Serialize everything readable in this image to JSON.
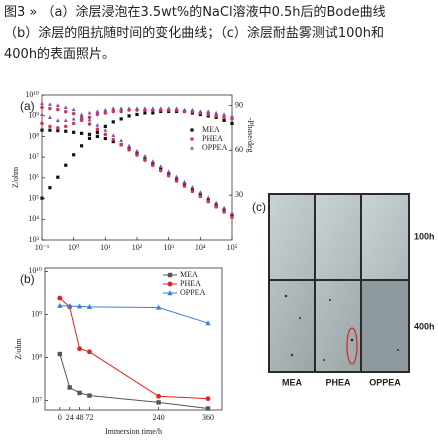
{
  "caption": [
    "图3 » （a）涂层浸泡在3.5wt%的NaCl溶液中0.5h后的Bode曲线",
    "（b）涂层的阻抗随时间的变化曲线；（c）涂层耐盐雾测试100h和",
    "400h的表面照片。"
  ],
  "chart_data": [
    {
      "type": "scatter",
      "panel_label": "(a)",
      "ylabel": "Z/ohm",
      "y2label": "-Phase/deg",
      "xscale": "log",
      "yscale": "log",
      "legend": "upper right",
      "x": [
        0.1,
        0.178,
        0.316,
        0.562,
        1,
        1.78,
        3.16,
        5.62,
        10,
        17.8,
        31.6,
        56.2,
        100,
        178,
        316,
        562,
        1000,
        1780,
        3160,
        5620,
        10000,
        17800,
        31600,
        56200,
        100000
      ],
      "xlim": [
        0.1,
        100000
      ],
      "xticks": [
        {
          "value": 0.1,
          "label": "10⁻¹"
        },
        {
          "value": 1,
          "label": "10⁰"
        },
        {
          "value": 10,
          "label": "10¹"
        },
        {
          "value": 100,
          "label": "10²"
        },
        {
          "value": 1000,
          "label": "10³"
        },
        {
          "value": 10000,
          "label": "10⁴"
        },
        {
          "value": 100000,
          "label": "10⁵"
        }
      ],
      "ylim": [
        1000,
        10000000000
      ],
      "yticks": [
        {
          "value": 1000,
          "label": "10³"
        },
        {
          "value": 10000,
          "label": "10⁴"
        },
        {
          "value": 100000,
          "label": "10⁵"
        },
        {
          "value": 1000000,
          "label": "10⁶"
        },
        {
          "value": 10000000,
          "label": "10⁷"
        },
        {
          "value": 100000000,
          "label": "10⁸"
        },
        {
          "value": 1000000000,
          "label": "10⁹"
        },
        {
          "value": 10000000000,
          "label": "10¹⁰"
        }
      ],
      "y2lim": [
        0,
        97
      ],
      "y2ticks": [
        30,
        60,
        90
      ],
      "series": [
        {
          "name": "MEA",
          "color": "#111111",
          "marker": "square",
          "values": [
            200000000.0,
            200000000.0,
            191000000.0,
            178000000.0,
            158000000.0,
            141000000.0,
            126000000.0,
            100000000.0,
            79400000.0,
            56200000.0,
            39800000.0,
            25100000.0,
            15800000.0,
            8910000.0,
            5010000.0,
            2820000.0,
            1580000.0,
            891000.0,
            501000.0,
            282000.0,
            158000.0,
            89100.0,
            50100.0,
            28200.0,
            15800.0
          ]
        },
        {
          "name": "PHEA",
          "color": "#e0304a",
          "marker": "circle",
          "values": [
            2510000000.0,
            2240000000.0,
            2000000000.0,
            1580000000.0,
            1260000000.0,
            708000000.0,
            398000000.0,
            224000000.0,
            126000000.0,
            70800000.0,
            39800000.0,
            22400000.0,
            12600000.0,
            7080000.0,
            3980000.0,
            2240000.0,
            1260000.0,
            708000.0,
            398000.0,
            224000.0,
            126000.0,
            70800.0,
            39800.0,
            22400.0,
            12600.0
          ]
        },
        {
          "name": "OPPEA",
          "color": "#7a4fc0",
          "marker": "triangle",
          "values": [
            3980000000.0,
            3550000000.0,
            3160000000.0,
            2510000000.0,
            2000000000.0,
            1120000000.0,
            631000000.0,
            355000000.0,
            200000000.0,
            112000000.0,
            63100000.0,
            35500000.0,
            20000000.0,
            11200000.0,
            6310000.0,
            3550000.0,
            2000000.0,
            1120000.0,
            631000.0,
            355000.0,
            200000.0,
            112000.0,
            63100.0,
            35500.0,
            20000.0
          ]
        },
        {
          "color": "#111111",
          "marker": "square",
          "axis": "y2",
          "values": [
            28,
            35,
            42,
            50,
            57,
            63,
            68,
            72,
            76,
            79,
            81,
            83,
            84,
            85,
            85,
            86,
            86,
            86,
            86,
            85,
            84,
            83,
            82,
            80,
            78
          ]
        },
        {
          "color": "#e0304a",
          "marker": "circle",
          "axis": "y2",
          "values": [
            78,
            76,
            75,
            76,
            78,
            80,
            82,
            84,
            85,
            86,
            86,
            87,
            87,
            87,
            87,
            87,
            87,
            87,
            86,
            86,
            85,
            84,
            83,
            82,
            81
          ]
        },
        {
          "color": "#7a4fc0",
          "marker": "triangle",
          "axis": "y2",
          "values": [
            84,
            82,
            80,
            80,
            81,
            83,
            85,
            86,
            87,
            88,
            88,
            88,
            88,
            88,
            88,
            88,
            88,
            88,
            87,
            87,
            86,
            86,
            85,
            84,
            83
          ]
        }
      ]
    },
    {
      "type": "line",
      "panel_label": "(b)",
      "xlabel": "Immersion time/h",
      "ylabel": "Z/ohm",
      "yscale": "log",
      "legend": "upper right",
      "x": [
        0,
        24,
        48,
        72,
        240,
        360
      ],
      "xlim": [
        -36,
        394
      ],
      "xticks": [
        0,
        24,
        48,
        72,
        240,
        360
      ],
      "ylim": [
        6000000,
        12000000000
      ],
      "yticks": [
        {
          "value": 10000000,
          "label": "10⁷"
        },
        {
          "value": 100000000,
          "label": "10⁸"
        },
        {
          "value": 1000000000,
          "label": "10⁹"
        },
        {
          "value": 10000000000,
          "label": "10¹⁰"
        }
      ],
      "series": [
        {
          "name": "MEA",
          "color": "#555555",
          "marker": "square",
          "values": [
            120000000.0,
            20000000.0,
            15000000.0,
            13000000.0,
            9000000.0,
            6500000.0
          ]
        },
        {
          "name": "PHEA",
          "color": "#e82020",
          "marker": "circle",
          "values": [
            2400000000.0,
            1500000000.0,
            160000000.0,
            135000000.0,
            12500000.0,
            11000000.0
          ]
        },
        {
          "name": "OPPEA",
          "color": "#3a80d8",
          "marker": "triangle",
          "values": [
            1600000000.0,
            1550000000.0,
            1550000000.0,
            1500000000.0,
            1450000000.0,
            630000000.0
          ]
        }
      ]
    }
  ],
  "photos": {
    "panel_label": "(c)",
    "columns": [
      "MEA",
      "PHEA",
      "OPPEA"
    ],
    "rows": [
      "100h",
      "400h"
    ]
  }
}
